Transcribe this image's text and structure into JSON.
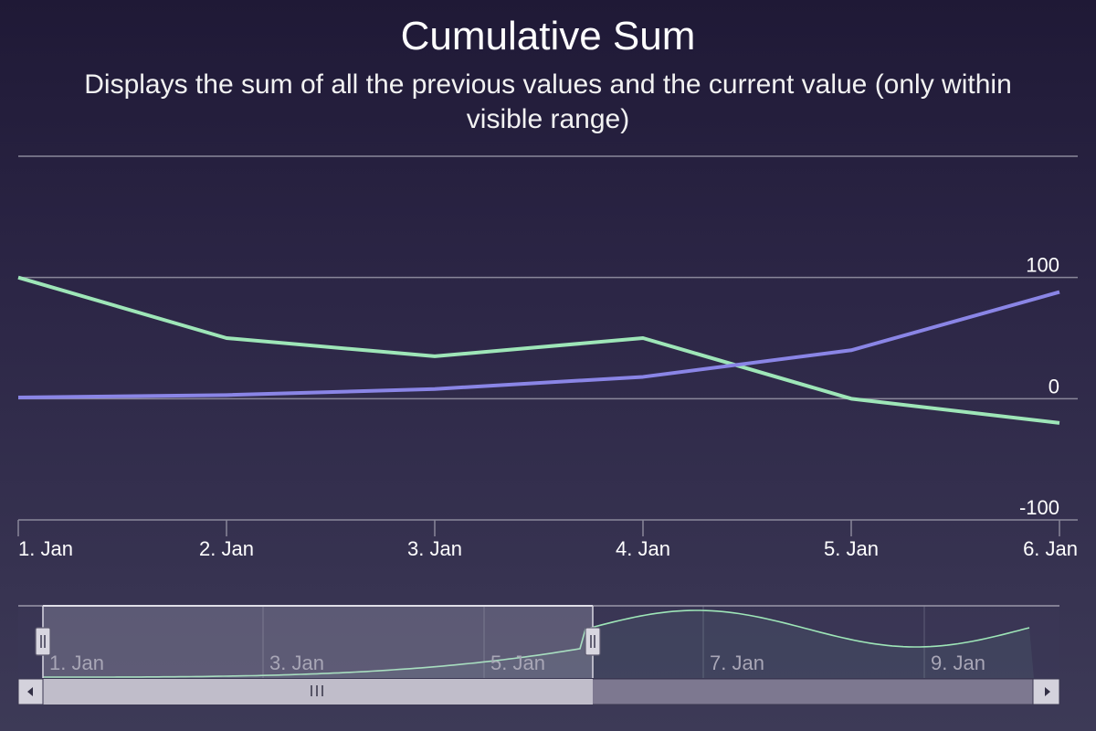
{
  "header": {
    "title": "Cumulative Sum",
    "subtitle": "Displays the sum of all the previous values and the current value (only within visible range)"
  },
  "colors": {
    "series_green": "#9ee6b8",
    "series_blue": "#8a85e6",
    "grid": "#8a879a",
    "navigator_series": "#9ee6b8",
    "scrollbar_thumb": "#c0bdca",
    "scrollbar_track": "#7d7890"
  },
  "chart_data": {
    "type": "line",
    "title": "Cumulative Sum",
    "subtitle": "Displays the sum of all the previous values and the current value (only within visible range)",
    "categories": [
      "1. Jan",
      "2. Jan",
      "3. Jan",
      "4. Jan",
      "5. Jan",
      "6. Jan"
    ],
    "x_tick_labels": [
      "1. Jan",
      "2. Jan",
      "3. Jan",
      "4. Jan",
      "5. Jan",
      "6. Jan"
    ],
    "y_tick_labels": [
      "100",
      "0",
      "-100"
    ],
    "ylim": [
      -100,
      200
    ],
    "grid": true,
    "series": [
      {
        "color": "#9ee6b8",
        "values": [
          100,
          50,
          35,
          50,
          0,
          -20
        ]
      },
      {
        "color": "#8a85e6",
        "values": [
          1,
          3,
          8,
          18,
          40,
          88
        ]
      }
    ],
    "navigator": {
      "tick_labels": [
        "1. Jan",
        "3. Jan",
        "5. Jan",
        "7. Jan",
        "9. Jan"
      ],
      "selected_range": [
        "1. Jan",
        "6. Jan"
      ]
    }
  }
}
